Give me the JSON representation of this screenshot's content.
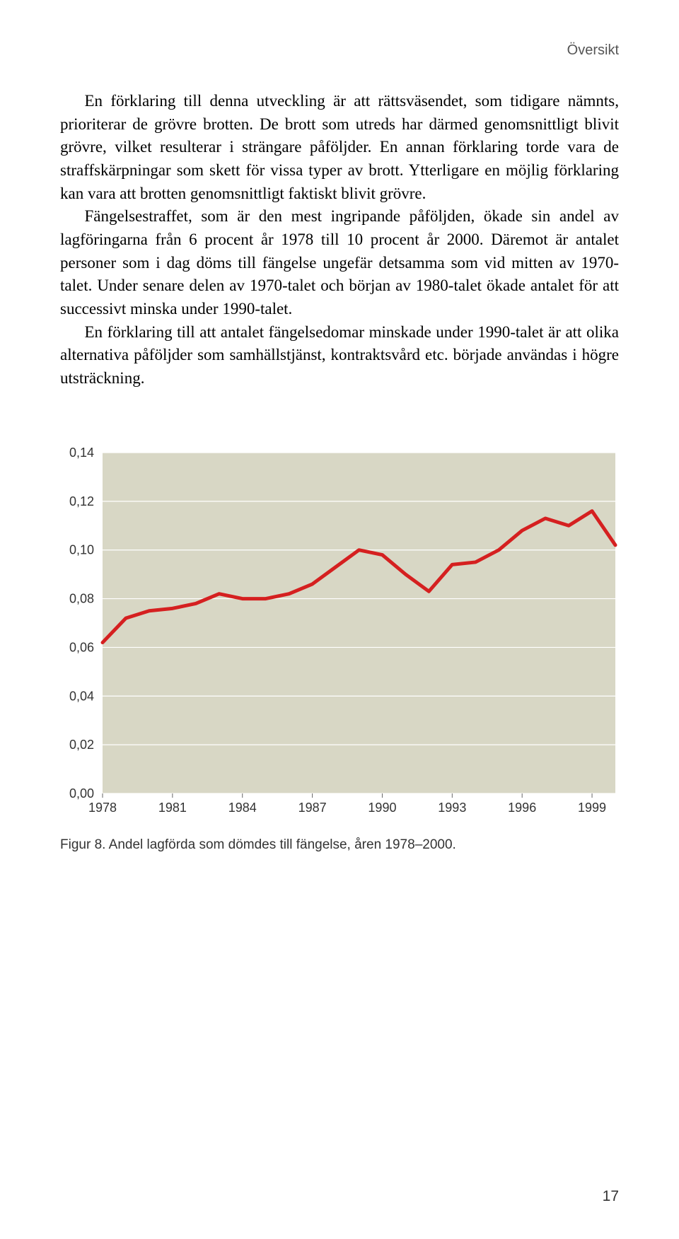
{
  "header": {
    "section_label": "Översikt"
  },
  "paragraphs": {
    "p1": "En förklaring till denna utveckling är att rättsväsendet, som tidigare nämnts, prioriterar de grövre brotten. De brott som utreds har därmed genomsnittligt blivit grövre, vilket resulterar i strängare påföljder. En annan förklaring torde vara de straffskärpningar som skett för vissa typer av brott. Ytterligare en möjlig förklaring kan vara att brotten genomsnittligt faktiskt blivit grövre.",
    "p2": "Fängelsestraffet, som är den mest ingripande påföljden, ökade sin andel av lagföringarna från 6 procent år 1978 till 10 procent år 2000. Däremot är antalet personer som i dag döms till fängelse ungefär detsamma som vid mitten av 1970-talet. Under senare delen av 1970-talet och början av 1980-talet ökade antalet för att successivt minska under 1990-talet.",
    "p3": "En förklaring till att antalet fängelsedomar minskade under 1990-talet är att olika alternativa påföljder som samhällstjänst, kontraktsvård etc. började användas i högre utsträckning."
  },
  "chart": {
    "type": "line",
    "background_color": "#ffffff",
    "plot_background": "#d8d7c5",
    "grid_color": "#ffffff",
    "line_color": "#d52020",
    "line_width": 5,
    "axis_label_color": "#333333",
    "axis_label_fontsize": 18,
    "y_ticks": [
      "0,00",
      "0,02",
      "0,04",
      "0,06",
      "0,08",
      "0,10",
      "0,12",
      "0,14"
    ],
    "y_values": [
      0.0,
      0.02,
      0.04,
      0.06,
      0.08,
      0.1,
      0.12,
      0.14
    ],
    "ylim": [
      0.0,
      0.14
    ],
    "x_ticks": [
      "1978",
      "1981",
      "1984",
      "1987",
      "1990",
      "1993",
      "1996",
      "1999"
    ],
    "x_tick_values": [
      1978,
      1981,
      1984,
      1987,
      1990,
      1993,
      1996,
      1999
    ],
    "xlim": [
      1978,
      2000
    ],
    "series": [
      {
        "x": 1978,
        "y": 0.062
      },
      {
        "x": 1979,
        "y": 0.072
      },
      {
        "x": 1980,
        "y": 0.075
      },
      {
        "x": 1981,
        "y": 0.076
      },
      {
        "x": 1982,
        "y": 0.078
      },
      {
        "x": 1983,
        "y": 0.082
      },
      {
        "x": 1984,
        "y": 0.08
      },
      {
        "x": 1985,
        "y": 0.08
      },
      {
        "x": 1986,
        "y": 0.082
      },
      {
        "x": 1987,
        "y": 0.086
      },
      {
        "x": 1988,
        "y": 0.093
      },
      {
        "x": 1989,
        "y": 0.1
      },
      {
        "x": 1990,
        "y": 0.098
      },
      {
        "x": 1991,
        "y": 0.09
      },
      {
        "x": 1992,
        "y": 0.083
      },
      {
        "x": 1993,
        "y": 0.094
      },
      {
        "x": 1994,
        "y": 0.095
      },
      {
        "x": 1995,
        "y": 0.1
      },
      {
        "x": 1996,
        "y": 0.108
      },
      {
        "x": 1997,
        "y": 0.113
      },
      {
        "x": 1998,
        "y": 0.11
      },
      {
        "x": 1999,
        "y": 0.116
      },
      {
        "x": 2000,
        "y": 0.102
      }
    ]
  },
  "caption": "Figur 8. Andel lagförda som dömdes till fängelse, åren 1978–2000.",
  "page_number": "17"
}
